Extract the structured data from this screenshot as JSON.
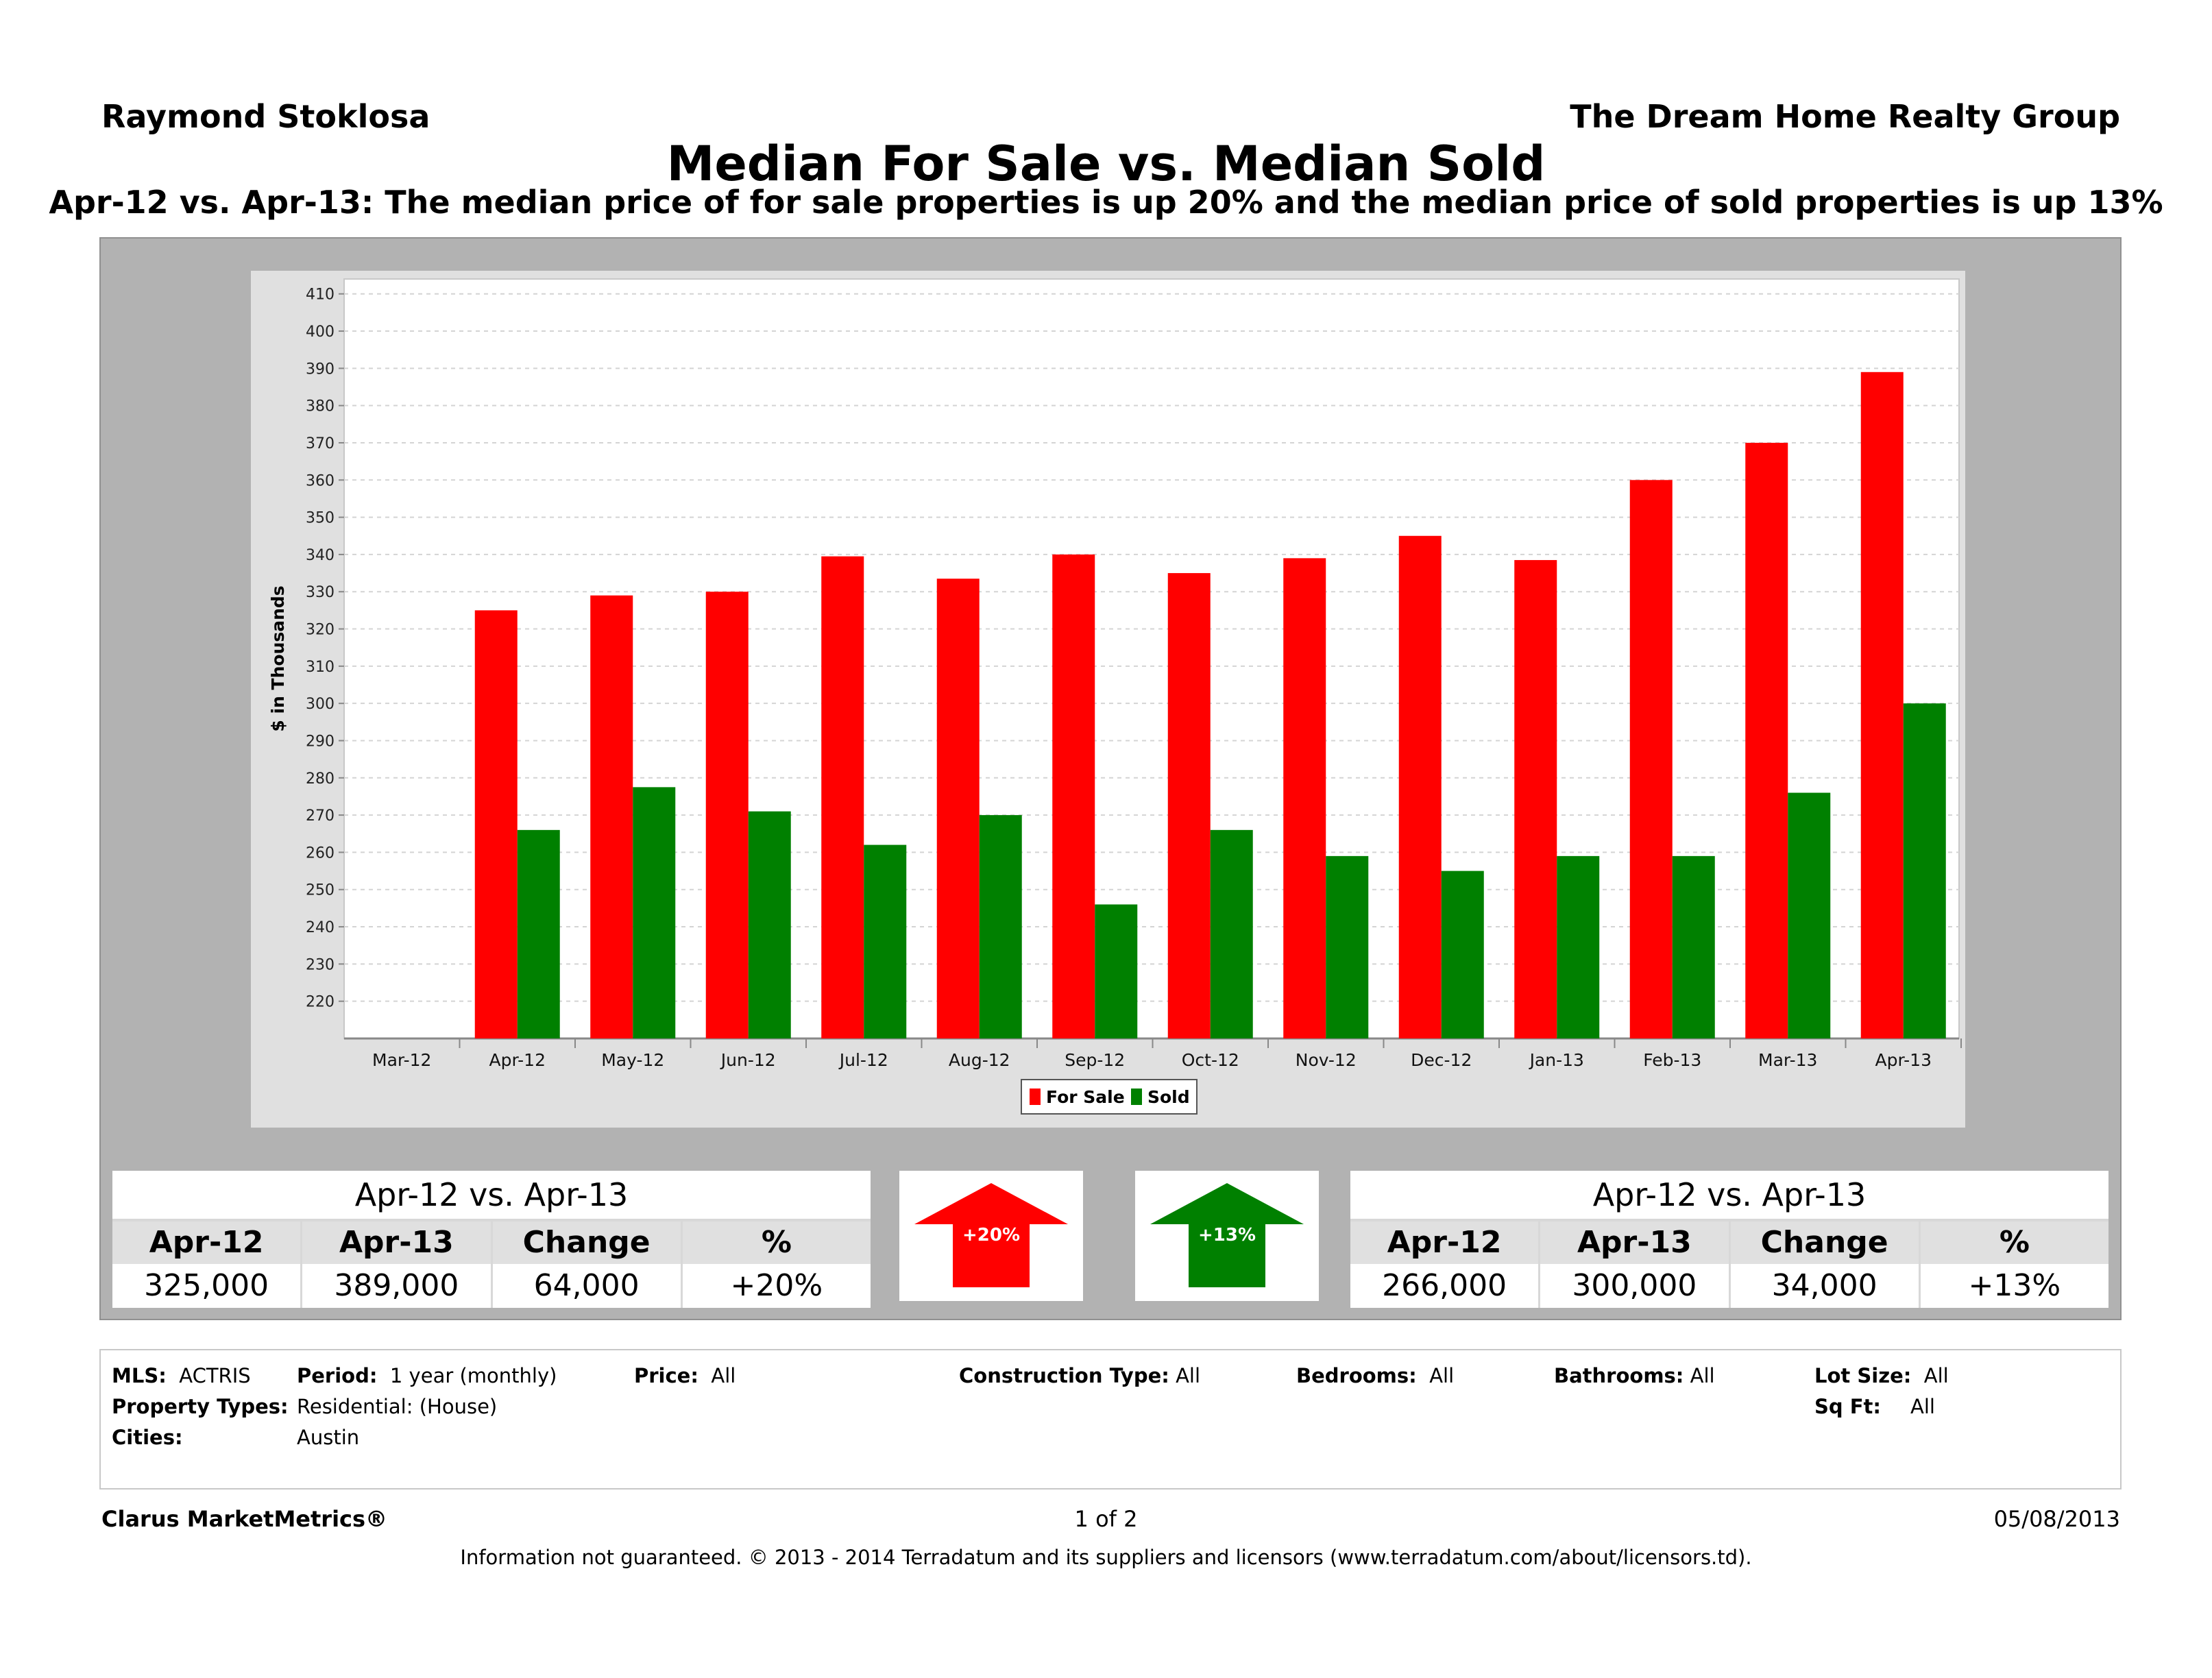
{
  "header": {
    "agent": "Raymond Stoklosa",
    "company": "The Dream Home Realty Group",
    "title": "Median For Sale vs. Median Sold",
    "subtitle": "Apr-12 vs. Apr-13:  The median price of for sale properties is up 20% and the median price of sold properties is up 13%"
  },
  "chart_data": {
    "type": "bar",
    "title": "",
    "xlabel": "",
    "ylabel": "$ in Thousands",
    "ylim": [
      210,
      414
    ],
    "yticks": [
      220,
      230,
      240,
      250,
      260,
      270,
      280,
      290,
      300,
      310,
      320,
      330,
      340,
      350,
      360,
      370,
      380,
      390,
      400,
      410
    ],
    "categories": [
      "Mar-12",
      "Apr-12",
      "May-12",
      "Jun-12",
      "Jul-12",
      "Aug-12",
      "Sep-12",
      "Oct-12",
      "Nov-12",
      "Dec-12",
      "Jan-13",
      "Feb-13",
      "Mar-13",
      "Apr-13"
    ],
    "series": [
      {
        "name": "For Sale",
        "color": "#ff0000",
        "values": [
          null,
          325,
          329,
          330,
          339.5,
          333.5,
          340,
          335,
          339,
          345,
          338.5,
          360,
          370,
          389
        ]
      },
      {
        "name": "Sold",
        "color": "#008000",
        "values": [
          null,
          266,
          277.5,
          271,
          262,
          270,
          246,
          266,
          259,
          255,
          259,
          259,
          276,
          300
        ]
      }
    ],
    "grid": true,
    "legend": "bottom-center"
  },
  "stats": {
    "for_sale": {
      "header": "Apr-12 vs. Apr-13",
      "columns": [
        "Apr-12",
        "Apr-13",
        "Change",
        "%"
      ],
      "values": [
        "325,000",
        "389,000",
        "64,000",
        "+20%"
      ]
    },
    "sold": {
      "header": "Apr-12 vs. Apr-13",
      "columns": [
        "Apr-12",
        "Apr-13",
        "Change",
        "%"
      ],
      "values": [
        "266,000",
        "300,000",
        "34,000",
        "+13%"
      ]
    },
    "for_sale_arrow": {
      "label": "+20%",
      "color": "#ff0000",
      "direction": "up"
    },
    "sold_arrow": {
      "label": "+13%",
      "color": "#008000",
      "direction": "up"
    }
  },
  "filters": {
    "mls_label": "MLS:",
    "mls_value": "ACTRIS",
    "period_label": "Period:",
    "period_value": "1 year (monthly)",
    "price_label": "Price:",
    "price_value": "All",
    "construction_label": "Construction Type:",
    "construction_value": "All",
    "bedrooms_label": "Bedrooms:",
    "bedrooms_value": "All",
    "bathrooms_label": "Bathrooms:",
    "bathrooms_value": "All",
    "lotsize_label": "Lot Size:",
    "lotsize_value": "All",
    "proptypes_label": "Property Types:",
    "proptypes_value": "Residential: (House)",
    "sqft_label": "Sq Ft:",
    "sqft_value": "All",
    "cities_label": "Cities:",
    "cities_value": "Austin"
  },
  "footer": {
    "brand": "Clarus MarketMetrics®",
    "page": "1 of 2",
    "date": "05/08/2013",
    "disclaimer": "Information not guaranteed.  © 2013 - 2014 Terradatum and its suppliers and licensors (www.terradatum.com/about/licensors.td)."
  }
}
